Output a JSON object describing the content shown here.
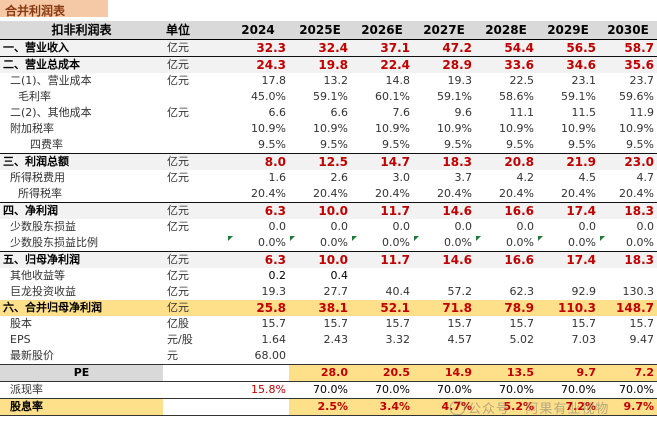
{
  "sheet": {
    "title": "合并利润表",
    "header": {
      "label": "扣非利润表",
      "unit": "单位",
      "years": [
        "2024",
        "2025E",
        "2026E",
        "2027E",
        "2028E",
        "2029E",
        "2030E"
      ]
    },
    "rows": [
      {
        "style": "section",
        "label": "一、营业收入",
        "unit": "亿元",
        "values": [
          "32.3",
          "32.4",
          "37.1",
          "47.2",
          "54.4",
          "56.5",
          "58.7"
        ]
      },
      {
        "style": "section",
        "label": "二、营业总成本",
        "unit": "亿元",
        "values": [
          "24.3",
          "19.8",
          "22.4",
          "28.9",
          "33.6",
          "34.6",
          "35.6"
        ]
      },
      {
        "style": "normal",
        "indent": 1,
        "label": "二(1)、营业成本",
        "unit": "亿元",
        "values": [
          "17.8",
          "13.2",
          "14.8",
          "19.3",
          "22.5",
          "23.1",
          "23.7"
        ]
      },
      {
        "style": "pct",
        "indent": 2,
        "label": "毛利率",
        "unit": "",
        "values": [
          "45.0%",
          "59.1%",
          "60.1%",
          "59.1%",
          "58.6%",
          "59.1%",
          "59.6%"
        ]
      },
      {
        "style": "normal",
        "indent": 1,
        "label": "二(2)、其他成本",
        "unit": "亿元",
        "values": [
          "6.6",
          "6.6",
          "7.6",
          "9.6",
          "11.1",
          "11.5",
          "11.9"
        ]
      },
      {
        "style": "pct",
        "indent": 1,
        "label": "附加税率",
        "unit": "",
        "values": [
          "10.9%",
          "10.9%",
          "10.9%",
          "10.9%",
          "10.9%",
          "10.9%",
          "10.9%"
        ]
      },
      {
        "style": "pct",
        "indent": 3,
        "label": "四费率",
        "unit": "",
        "values": [
          "9.5%",
          "9.5%",
          "9.5%",
          "9.5%",
          "9.5%",
          "9.5%",
          "9.5%"
        ]
      },
      {
        "style": "section",
        "label": "三、利润总额",
        "unit": "亿元",
        "values": [
          "8.0",
          "12.5",
          "14.7",
          "18.3",
          "20.8",
          "21.9",
          "23.0"
        ]
      },
      {
        "style": "normal",
        "indent": 1,
        "label": "所得税费用",
        "unit": "亿元",
        "values": [
          "1.6",
          "2.6",
          "3.0",
          "3.7",
          "4.2",
          "4.5",
          "4.7"
        ]
      },
      {
        "style": "pct",
        "indent": 2,
        "label": "所得税率",
        "unit": "",
        "values": [
          "20.4%",
          "20.4%",
          "20.4%",
          "20.4%",
          "20.4%",
          "20.4%",
          "20.4%"
        ]
      },
      {
        "style": "section",
        "label": "四、净利润",
        "unit": "亿元",
        "values": [
          "6.3",
          "10.0",
          "11.7",
          "14.6",
          "16.6",
          "17.4",
          "18.3"
        ]
      },
      {
        "style": "normal",
        "indent": 1,
        "label": "少数股东损益",
        "unit": "亿元",
        "values": [
          "0.0",
          "0.0",
          "0.0",
          "0.0",
          "0.0",
          "0.0",
          "0.0"
        ]
      },
      {
        "style": "pct",
        "indent": 1,
        "label": "少数股东损益比例",
        "unit": "",
        "flag": true,
        "values": [
          "0.0%",
          "0.0%",
          "0.0%",
          "0.0%",
          "0.0%",
          "0.0%",
          "0.0%"
        ]
      },
      {
        "style": "section",
        "label": "五、归母净利润",
        "unit": "亿元",
        "values": [
          "6.3",
          "10.0",
          "11.7",
          "14.6",
          "16.6",
          "17.4",
          "18.3"
        ]
      },
      {
        "style": "normal",
        "indent": 1,
        "label": "其他收益等",
        "unit": "亿元",
        "blackvals": true,
        "values": [
          "0.2",
          "0.4",
          "",
          "",
          "",
          "",
          ""
        ]
      },
      {
        "style": "normal",
        "indent": 1,
        "label": "巨龙投资收益",
        "unit": "亿元",
        "values": [
          "19.3",
          "27.7",
          "40.4",
          "57.2",
          "62.3",
          "92.9",
          "130.3"
        ]
      },
      {
        "style": "highlight",
        "label": "六、合并归母净利润",
        "unit": "亿元",
        "values": [
          "25.8",
          "38.1",
          "52.1",
          "71.8",
          "78.9",
          "110.3",
          "148.7"
        ]
      },
      {
        "style": "normal",
        "indent": 1,
        "label": "股本",
        "unit": "亿股",
        "values": [
          "15.7",
          "15.7",
          "15.7",
          "15.7",
          "15.7",
          "15.7",
          "15.7"
        ]
      },
      {
        "style": "normal",
        "indent": 1,
        "label": "EPS",
        "unit": "元/股",
        "values": [
          "1.64",
          "2.43",
          "3.32",
          "4.57",
          "5.02",
          "7.03",
          "9.47"
        ]
      },
      {
        "style": "normal",
        "indent": 1,
        "label": "最新股价",
        "unit": "元",
        "values": [
          "68.00",
          "",
          "",
          "",
          "",
          "",
          ""
        ]
      }
    ],
    "pe": {
      "label": "PE",
      "values": [
        "",
        "28.0",
        "20.5",
        "14.9",
        "13.5",
        "9.7",
        "7.2"
      ]
    },
    "payout": {
      "label": "派现率",
      "values": [
        "15.8%",
        "70.0%",
        "70.0%",
        "70.0%",
        "70.0%",
        "70.0%",
        "70.0%"
      ]
    },
    "yield": {
      "label": "股息率",
      "values": [
        "",
        "2.5%",
        "3.4%",
        "4.7%",
        "5.2%",
        "7.2%",
        "9.7%"
      ]
    },
    "watermark": "公众号 · 阿果有业视物"
  }
}
